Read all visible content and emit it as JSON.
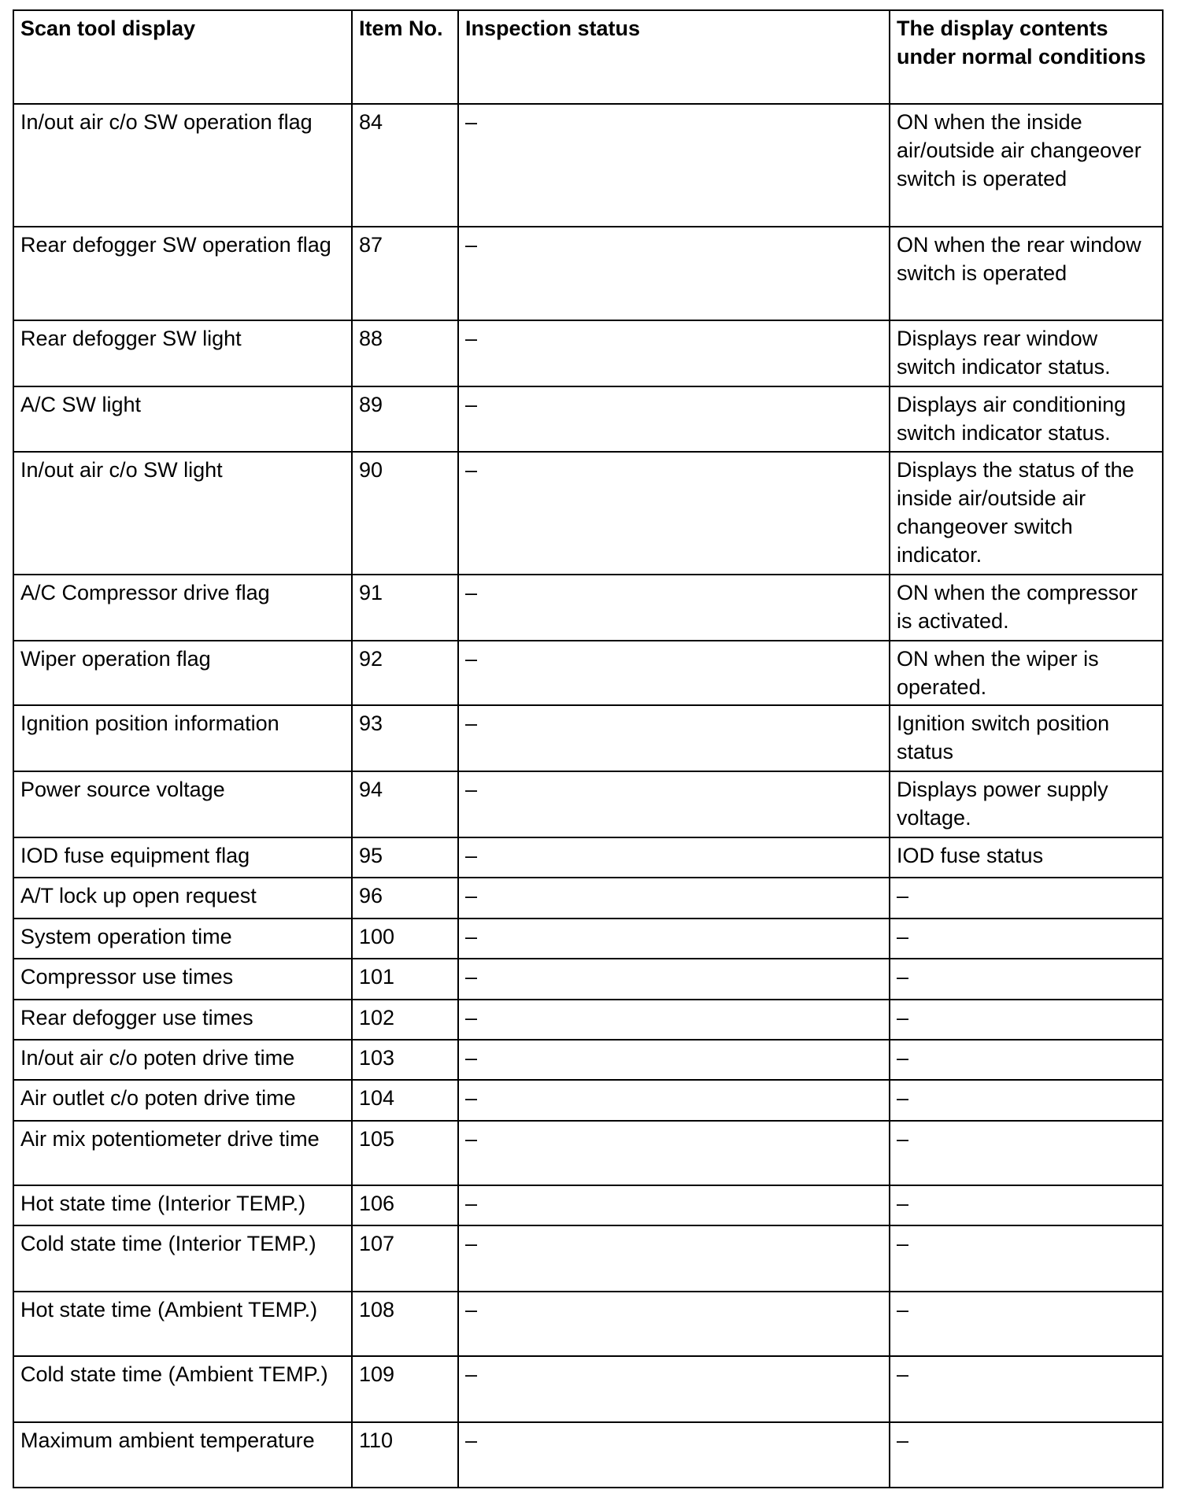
{
  "headers": [
    "Scan tool display",
    "Item No.",
    "Inspection status",
    "The display contents under normal conditions"
  ],
  "rows": [
    [
      "In/out air c/o SW operation flag",
      "84",
      "–",
      "ON when the inside air/outside air changeover switch is operated"
    ],
    [
      "Rear defogger SW operation flag",
      "87",
      "–",
      "ON when the rear window switch is operated"
    ],
    [
      "Rear defogger SW light",
      "88",
      "–",
      "Displays rear window switch indicator status."
    ],
    [
      "A/C SW light",
      "89",
      "–",
      "Displays air conditioning switch indicator status."
    ],
    [
      "In/out air c/o SW light",
      "90",
      "–",
      "Displays the status of the inside air/outside air changeover switch indicator."
    ],
    [
      "A/C Compressor drive flag",
      "91",
      "–",
      "ON when the compressor is activated."
    ],
    [
      "Wiper operation flag",
      "92",
      "–",
      "ON when the wiper is operated."
    ],
    [
      "Ignition position information",
      "93",
      "–",
      "Ignition switch position status"
    ],
    [
      "Power source voltage",
      "94",
      "–",
      "Displays power supply voltage."
    ],
    [
      "IOD fuse equipment flag",
      "95",
      "–",
      "IOD fuse status"
    ],
    [
      "A/T lock up open request",
      "96",
      "–",
      "–"
    ],
    [
      "System operation time",
      "100",
      "–",
      "–"
    ],
    [
      "Compressor use times",
      "101",
      "–",
      "–"
    ],
    [
      "Rear defogger use times",
      "102",
      "–",
      "–"
    ],
    [
      "In/out air c/o poten drive time",
      "103",
      "–",
      "–"
    ],
    [
      "Air outlet c/o poten drive time",
      "104",
      "–",
      "–"
    ],
    [
      "Air mix potentiometer drive time",
      "105",
      "–",
      "–"
    ],
    [
      "Hot state time (Interior TEMP.)",
      "106",
      "–",
      "–"
    ],
    [
      "Cold state time (Interior TEMP.)",
      "107",
      "–",
      "–"
    ],
    [
      "Hot state time (Ambient TEMP.)",
      "108",
      "–",
      "–"
    ],
    [
      "Cold state time (Ambient TEMP.)",
      "109",
      "–",
      "–"
    ],
    [
      "Maximum ambient temperature",
      "110",
      "–",
      "–"
    ]
  ]
}
